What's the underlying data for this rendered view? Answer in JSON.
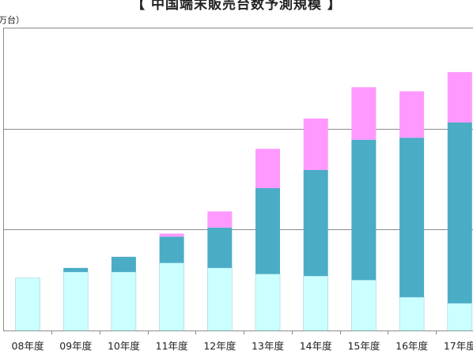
{
  "title": "【 中国端末販売台数予測規模 】",
  "y_unit_label": "万台）",
  "chart_data": {
    "type": "bar",
    "stacked": true,
    "categories": [
      "08年度",
      "09年度",
      "10年度",
      "11年度",
      "12年度",
      "13年度",
      "14年度",
      "15年度",
      "16年度",
      "17年度"
    ],
    "series": [
      {
        "color": "#ccffff",
        "values": [
          5200,
          5800,
          5800,
          6700,
          6200,
          5600,
          5400,
          5000,
          3300,
          2700
        ]
      },
      {
        "color": "#4bacc6",
        "values": [
          0,
          400,
          1500,
          2600,
          4000,
          8500,
          10500,
          13900,
          15800,
          17900
        ]
      },
      {
        "color": "#ff99ff",
        "values": [
          0,
          0,
          0,
          300,
          1600,
          3900,
          5100,
          5200,
          4600,
          5000
        ]
      }
    ],
    "ylim": [
      0,
      30000
    ],
    "gridlines": [
      10000,
      20000,
      30000
    ],
    "legend": "none"
  },
  "colors": {
    "grid": "#8c8c8c",
    "axis": "#8c8c8c",
    "bar_edge": "#9ad3dc"
  }
}
